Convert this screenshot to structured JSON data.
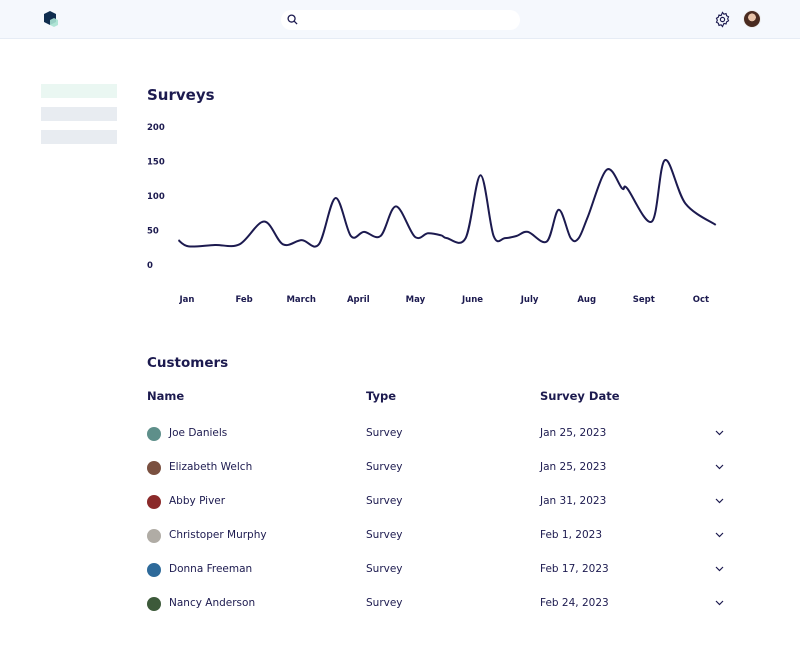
{
  "header": {
    "logo_icon": "hexagon-logo",
    "search": {
      "placeholder": "",
      "icon": "search-icon"
    },
    "settings_icon": "gear-icon",
    "avatar": "user-avatar"
  },
  "sidebar": {
    "items": [
      {
        "color": "#eaf7f2"
      },
      {
        "color": "#e8ecf1"
      },
      {
        "color": "#e8ecf1"
      }
    ]
  },
  "surveys": {
    "title": "Surveys"
  },
  "chart_data": {
    "type": "line",
    "title": "",
    "y_ticks": [
      "200",
      "150",
      "100",
      "50",
      "0"
    ],
    "ylim": [
      0,
      200
    ],
    "categories": [
      "Jan",
      "Feb",
      "March",
      "April",
      "May",
      "June",
      "July",
      "Aug",
      "Sept",
      "Oct"
    ],
    "line_color": "#1c1a4f",
    "grid": false,
    "series": [
      {
        "points": [
          [
            -0.15,
            36
          ],
          [
            0.03,
            27
          ],
          [
            0.49,
            29
          ],
          [
            0.92,
            30
          ],
          [
            1.35,
            63
          ],
          [
            1.68,
            30
          ],
          [
            2.01,
            36
          ],
          [
            2.31,
            30
          ],
          [
            2.6,
            97
          ],
          [
            2.87,
            42
          ],
          [
            3.1,
            48
          ],
          [
            3.39,
            42
          ],
          [
            3.66,
            85
          ],
          [
            3.99,
            41
          ],
          [
            4.22,
            46
          ],
          [
            4.45,
            43
          ],
          [
            4.55,
            39
          ],
          [
            4.88,
            39
          ],
          [
            5.14,
            130
          ],
          [
            5.37,
            42
          ],
          [
            5.57,
            39
          ],
          [
            5.77,
            42
          ],
          [
            5.97,
            48
          ],
          [
            6.3,
            34
          ],
          [
            6.51,
            80
          ],
          [
            6.72,
            39
          ],
          [
            6.86,
            39
          ],
          [
            7.02,
            70
          ],
          [
            7.35,
            138
          ],
          [
            7.62,
            111
          ],
          [
            7.71,
            111
          ],
          [
            8.14,
            63
          ],
          [
            8.37,
            152
          ],
          [
            8.73,
            89
          ],
          [
            9.26,
            58
          ]
        ]
      }
    ]
  },
  "customers": {
    "title": "Customers",
    "columns": [
      "Name",
      "Type",
      "Survey Date"
    ],
    "rows": [
      {
        "name": "Joe Daniels",
        "type": "Survey",
        "date": "Jan 25, 2023",
        "avatar_color": "#5e8f8a"
      },
      {
        "name": "Elizabeth Welch",
        "type": "Survey",
        "date": "Jan 25, 2023",
        "avatar_color": "#7a5040"
      },
      {
        "name": "Abby Piver",
        "type": "Survey",
        "date": "Jan 31, 2023",
        "avatar_color": "#8b2a2a"
      },
      {
        "name": "Christoper Murphy",
        "type": "Survey",
        "date": "Feb 1, 2023",
        "avatar_color": "#b0aca5"
      },
      {
        "name": "Donna Freeman",
        "type": "Survey",
        "date": "Feb 17, 2023",
        "avatar_color": "#2e6a9a"
      },
      {
        "name": "Nancy Anderson",
        "type": "Survey",
        "date": "Feb 24, 2023",
        "avatar_color": "#3d5a3a"
      }
    ]
  }
}
